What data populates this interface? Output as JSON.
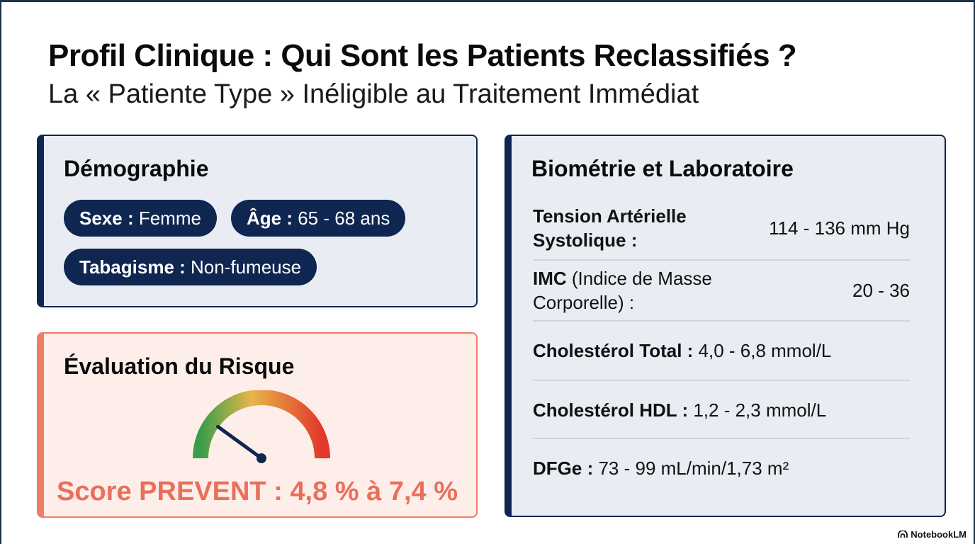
{
  "header": {
    "title": "Profil Clinique : Qui Sont les Patients Reclassifiés ?",
    "subtitle": "La « Patiente Type » Inéligible au Traitement Immédiat"
  },
  "demographics": {
    "title": "Démographie",
    "sex_label": "Sexe :",
    "sex_value": " Femme",
    "age_label": "Âge :",
    "age_value": " 65 - 68 ans",
    "smoking_label": "Tabagisme :",
    "smoking_value": " Non-fumeuse"
  },
  "risk": {
    "title": "Évaluation du Risque",
    "score_text": "Score PREVENT : 4,8 % à 7,4 %",
    "gauge_level": 0.2,
    "colors": {
      "low": "#3a9d4a",
      "mid": "#e7b64a",
      "high": "#e2372a",
      "accent": "#ea6f5a"
    }
  },
  "biometrics": {
    "title": "Biométrie et Laboratoire",
    "rows": [
      {
        "label_bold": "Tension Artérielle Systolique :",
        "label_rest": "",
        "value": "114 - 136 mm Hg"
      },
      {
        "label_bold": "IMC",
        "label_rest": " (Indice de Masse Corporelle) :",
        "value": "20 - 36"
      },
      {
        "label_bold": "Cholestérol Total :",
        "label_rest": " 4,0 - 6,8 mmol/L",
        "value": ""
      },
      {
        "label_bold": "Cholestérol HDL :",
        "label_rest": " 1,2 - 2,3 mmol/L",
        "value": ""
      },
      {
        "label_bold": "DFGe :",
        "label_rest": " 73 - 99 mL/min/1,73 m²",
        "value": ""
      }
    ]
  },
  "brand": {
    "name": "NotebookLM",
    "icon": "notebooklm-icon"
  }
}
